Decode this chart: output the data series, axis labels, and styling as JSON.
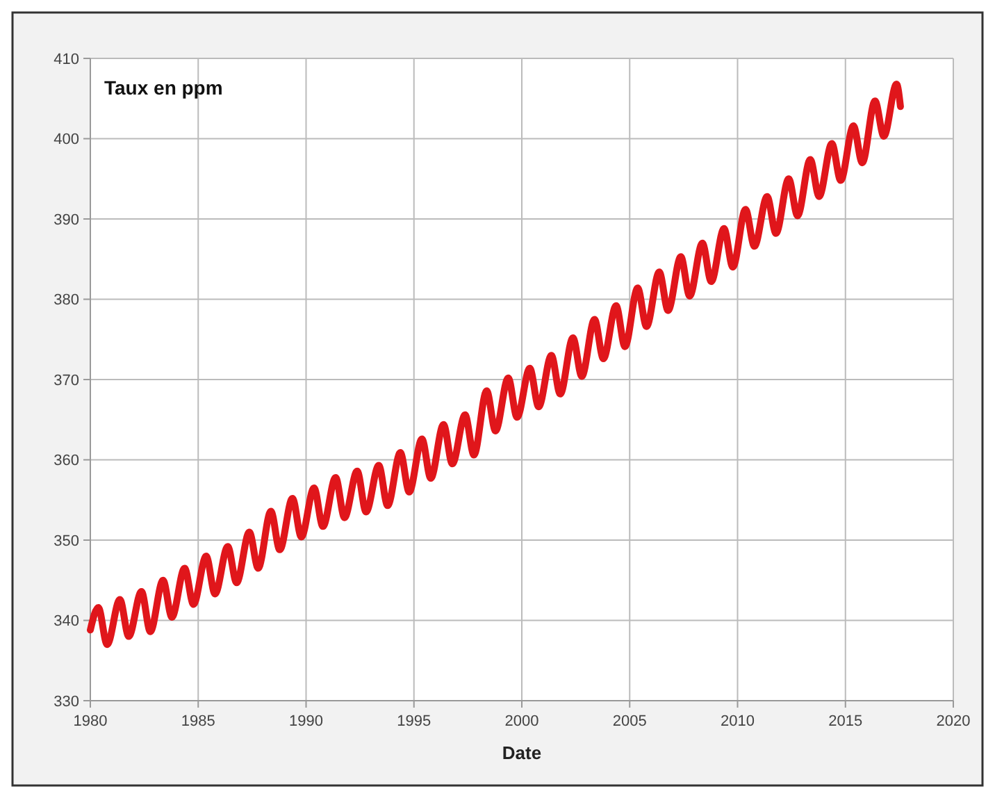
{
  "chart_data": {
    "type": "line",
    "xlabel": "Date",
    "ylabel": "Taux en ppm",
    "xlim": [
      1980,
      2020
    ],
    "xticks": [
      1980,
      1985,
      1990,
      1995,
      2000,
      2005,
      2010,
      2015,
      2020
    ],
    "ylim": [
      330,
      410
    ],
    "yticks": [
      330,
      340,
      350,
      360,
      370,
      380,
      390,
      400,
      410
    ],
    "grid": true,
    "marker": "none",
    "line_style": "solid",
    "series": [
      {
        "color": "#e0161b",
        "x": [
          1980.0,
          1980.37,
          1980.78,
          1981.37,
          1981.78,
          1982.37,
          1982.78,
          1983.37,
          1983.78,
          1984.37,
          1984.78,
          1985.37,
          1985.78,
          1986.37,
          1986.78,
          1987.37,
          1987.78,
          1988.37,
          1988.78,
          1989.37,
          1989.78,
          1990.37,
          1990.78,
          1991.37,
          1991.78,
          1992.37,
          1992.78,
          1993.37,
          1993.78,
          1994.37,
          1994.78,
          1995.37,
          1995.78,
          1996.37,
          1996.78,
          1997.37,
          1997.78,
          1998.37,
          1998.78,
          1999.37,
          1999.78,
          2000.37,
          2000.78,
          2001.37,
          2001.78,
          2002.37,
          2002.78,
          2003.37,
          2003.78,
          2004.37,
          2004.78,
          2005.37,
          2005.78,
          2006.37,
          2006.78,
          2007.37,
          2007.78,
          2008.37,
          2008.78,
          2009.37,
          2009.78,
          2010.37,
          2010.78,
          2011.37,
          2011.78,
          2012.37,
          2012.78,
          2013.37,
          2013.78,
          2014.37,
          2014.78,
          2015.37,
          2015.78,
          2016.37,
          2016.78,
          2017.37,
          2017.55
        ],
        "values": [
          338.8,
          341.6,
          337.0,
          342.6,
          338.0,
          343.6,
          338.6,
          345.0,
          340.4,
          346.5,
          342.0,
          348.0,
          343.3,
          349.2,
          344.7,
          351.0,
          346.5,
          353.6,
          348.8,
          355.2,
          350.4,
          356.5,
          351.7,
          357.8,
          352.8,
          358.6,
          353.5,
          359.3,
          354.3,
          360.9,
          356.0,
          362.6,
          357.7,
          364.4,
          359.5,
          365.6,
          360.6,
          368.6,
          363.6,
          370.2,
          365.3,
          371.4,
          366.6,
          373.0,
          368.2,
          375.2,
          370.4,
          377.5,
          372.6,
          379.2,
          374.1,
          381.4,
          376.6,
          383.4,
          378.6,
          385.3,
          380.4,
          387.0,
          382.2,
          388.8,
          384.0,
          391.2,
          386.6,
          392.8,
          388.2,
          395.0,
          390.4,
          397.4,
          392.8,
          399.4,
          394.8,
          401.6,
          397.0,
          404.7,
          400.3,
          406.8,
          404.0
        ]
      }
    ]
  }
}
